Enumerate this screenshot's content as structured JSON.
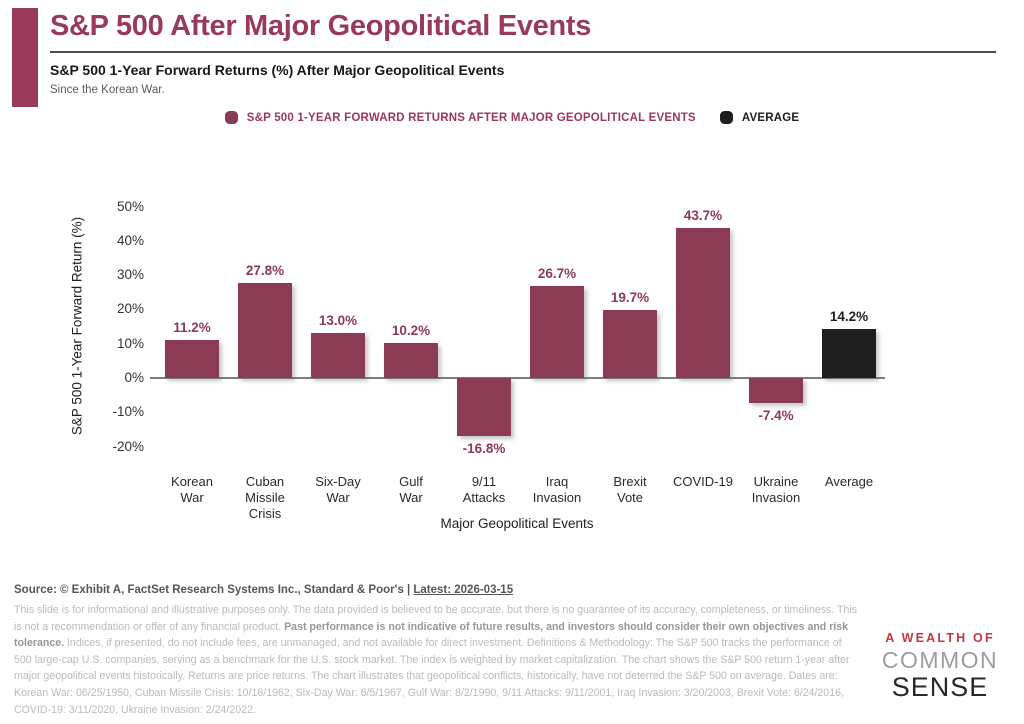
{
  "header": {
    "title": "S&P 500 After Major Geopolitical Events",
    "subtitle": "S&P 500 1-Year Forward Returns (%) After Major Geopolitical Events",
    "tagline": "Since the Korean War."
  },
  "colors": {
    "accent_maroon": "#993a5b",
    "bar_maroon": "#8c3b54",
    "bar_black": "#1e1e1e"
  },
  "legend": [
    {
      "label": "S&P 500 1-YEAR FORWARD RETURNS AFTER MAJOR GEOPOLITICAL EVENTS",
      "color": "#8c3b54",
      "text_color": "#993a5b"
    },
    {
      "label": "AVERAGE",
      "color": "#1e1e1e",
      "text_color": "#1c1c1c"
    }
  ],
  "chart_data": {
    "type": "bar",
    "title": "S&P 500 1-Year Forward Returns (%) After Major Geopolitical Events",
    "xlabel": "Major Geopolitical Events",
    "ylabel": "S&P 500 1-Year Forward Return (%)",
    "ylim": [
      -20,
      50
    ],
    "ytick_step": 10,
    "ytick_suffix": "%",
    "grid": false,
    "legend_position": "top",
    "categories": [
      "Korean War",
      "Cuban Missile Crisis",
      "Six-Day War",
      "Gulf War",
      "9/11 Attacks",
      "Iraq Invasion",
      "Brexit Vote",
      "COVID-19",
      "Ukraine Invasion",
      "Average"
    ],
    "tick_lines": [
      [
        "Korean",
        "War"
      ],
      [
        "Cuban",
        "Missile",
        "Crisis"
      ],
      [
        "Six-Day",
        "War"
      ],
      [
        "Gulf",
        "War"
      ],
      [
        "9/11",
        "Attacks"
      ],
      [
        "Iraq",
        "Invasion"
      ],
      [
        "Brexit",
        "Vote"
      ],
      [
        "COVID-19"
      ],
      [
        "Ukraine",
        "Invasion"
      ],
      [
        "Average"
      ]
    ],
    "values": [
      11.2,
      27.8,
      13.0,
      10.2,
      -16.8,
      26.7,
      19.7,
      43.7,
      -7.4,
      14.2
    ],
    "value_labels": [
      "11.2%",
      "27.8%",
      "13.0%",
      "10.2%",
      "-16.8%",
      "26.7%",
      "19.7%",
      "43.7%",
      "-7.4%",
      "14.2%"
    ],
    "bar_colors": [
      "#8c3b54",
      "#8c3b54",
      "#8c3b54",
      "#8c3b54",
      "#8c3b54",
      "#8c3b54",
      "#8c3b54",
      "#8c3b54",
      "#8c3b54",
      "#1e1e1e"
    ]
  },
  "footer": {
    "source_prefix": "Source: © Exhibit A, FactSet Research Systems Inc., Standard & Poor's | ",
    "source_latest": "Latest: 2026-03-15",
    "disclaimer_segments": [
      {
        "text": "This slide is for informational and illustrative purposes only. The data provided is believed to be accurate, but there is no guarantee of its accuracy, completeness, or timeliness. This is not a recommendation or offer of any financial product. ",
        "bold": false
      },
      {
        "text": "Past performance is not indicative of future results, and investors should consider their own objectives and risk tolerance.",
        "bold": true
      },
      {
        "text": " Indices, if presented, do not include fees, are unmanaged, and not available for direct investment. Definitions & Methodology: The S&P 500 tracks the performance of 500 large-cap U.S. companies, serving as a benchmark for the U.S. stock market. The index is weighted by market capitalization. The chart shows the S&P 500 return 1-year after major geopolitical events historically. Returns are price returns. The chart illustrates that geopolitical conflicts, historically, have not deterred the S&P 500 on average. Dates are: Korean War: 06/25/1950, Cuban Missile Crisis: 10/16/1962, Six-Day War: 6/5/1967, Gulf War: 8/2/1990, 9/11 Attacks: 9/11/2001, Iraq Invasion: 3/20/2003, Brexit Vote: 6/24/2016, COVID-19: 3/11/2020, Ukraine Invasion: 2/24/2022.",
        "bold": false
      }
    ],
    "logo": {
      "line1": "A WEALTH OF",
      "line2": "COMMON",
      "line3": "SENSE"
    }
  }
}
